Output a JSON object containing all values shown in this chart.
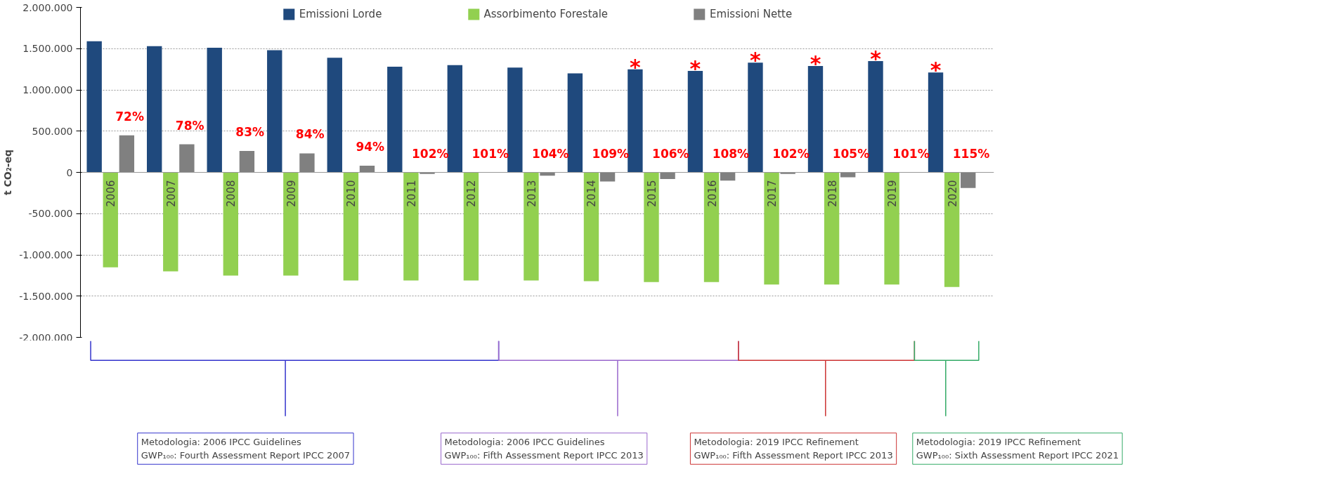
{
  "chart_data": {
    "type": "bar",
    "categories": [
      "2006",
      "2007",
      "2008",
      "2009",
      "2010",
      "2011",
      "2012",
      "2013",
      "2014",
      "2015",
      "2016",
      "2017",
      "2018",
      "2019",
      "2020"
    ],
    "ylabel": "t CO₂-eq",
    "series": [
      {
        "name": "Emissioni Lorde",
        "color": "#1f497d",
        "values": [
          1590000,
          1530000,
          1510000,
          1480000,
          1390000,
          1280000,
          1300000,
          1270000,
          1200000,
          1250000,
          1230000,
          1330000,
          1290000,
          1350000,
          1210000
        ]
      },
      {
        "name": "Assorbimento Forestale",
        "color": "#92d050",
        "values": [
          -1150000,
          -1200000,
          -1250000,
          -1250000,
          -1310000,
          -1310000,
          -1310000,
          -1310000,
          -1320000,
          -1330000,
          -1330000,
          -1360000,
          -1360000,
          -1360000,
          -1390000
        ]
      },
      {
        "name": "Emissioni Nette",
        "color": "#808080",
        "values": [
          450000,
          340000,
          260000,
          230000,
          80000,
          -20000,
          null,
          -40000,
          -110000,
          -80000,
          -100000,
          -20000,
          -60000,
          null,
          -190000
        ]
      }
    ],
    "ylim": [
      -2000000,
      2000000
    ],
    "yticks": [
      {
        "value": -2000000,
        "label": "-2.000.000"
      },
      {
        "value": -1500000,
        "label": "-1.500.000"
      },
      {
        "value": -1000000,
        "label": "-1.000.000"
      },
      {
        "value": -500000,
        "label": "-500.000"
      },
      0,
      {
        "value": 500000,
        "label": "500.000"
      },
      {
        "value": 1000000,
        "label": "1.000.000"
      },
      {
        "value": 1500000,
        "label": "1.500.000"
      },
      {
        "value": 2000000,
        "label": "2.000.000"
      }
    ],
    "grid": "y",
    "legend": "top",
    "annotations": [
      "72%",
      "78%",
      "83%",
      "84%",
      "94%",
      "102%",
      "101%",
      "104%",
      "109%",
      "106%",
      "108%",
      "102%",
      "105%",
      "101%",
      "115%",
      "*",
      "*",
      "*",
      "*",
      "*",
      "*",
      "Metodologia: 2006 IPCC Guidelines\nGWP₁₀₀: Fourth Assessment Report IPCC 2007",
      "Metodologia: 2006 IPCC Guidelines\nGWP₁₀₀: Fifth Assessment Report IPCC 2013",
      "Metodologia: 2019  IPCC Refinement\nGWP₁₀₀: Fifth Assessment Report IPCC 2013",
      "Metodologia: 2019  IPCC Refinement\nGWP₁₀₀: Sixth Assessment Report IPCC 2021"
    ]
  }
}
